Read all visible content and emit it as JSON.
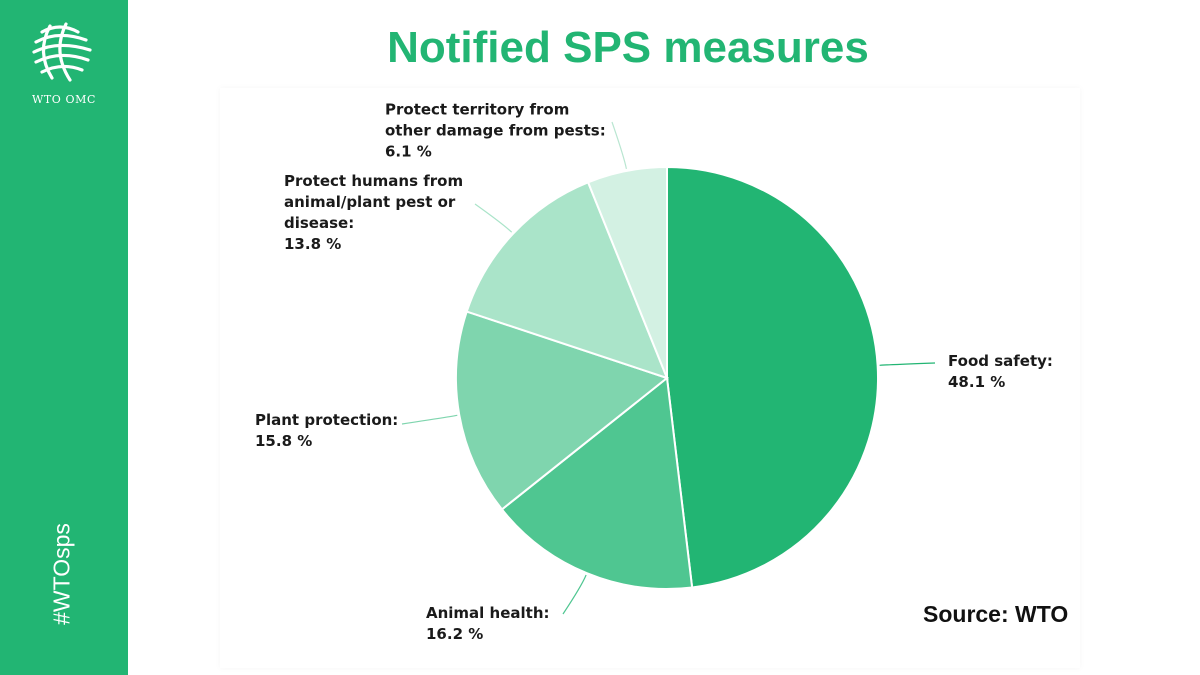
{
  "sidebar": {
    "logo_icon": "wto-globe-logo-icon",
    "org_label": "WTO OMC",
    "hashtag": "#WTOsps",
    "background": "#22b573"
  },
  "header": {
    "title": "Notified SPS measures"
  },
  "footer": {
    "source": "Source: WTO"
  },
  "chart_data": {
    "type": "pie",
    "title": "Notified SPS measures",
    "unit": "%",
    "start_angle_deg": 0,
    "direction": "clockwise",
    "legend": "none",
    "slices": [
      {
        "label_lines": [
          "Food safety:"
        ],
        "value_text": "48.1 %",
        "value": 48.1,
        "color": "#22b573"
      },
      {
        "label_lines": [
          "Animal health:"
        ],
        "value_text": "16.2 %",
        "value": 16.2,
        "color": "#4fc691"
      },
      {
        "label_lines": [
          "Plant protection:"
        ],
        "value_text": "15.8 %",
        "value": 15.8,
        "color": "#7fd5ae"
      },
      {
        "label_lines": [
          "Protect humans from",
          "animal/plant pest or",
          "disease:"
        ],
        "value_text": "13.8 %",
        "value": 13.8,
        "color": "#aae4c9"
      },
      {
        "label_lines": [
          "Protect territory from",
          "other damage from pests:"
        ],
        "value_text": "6.1 %",
        "value": 6.1,
        "color": "#d3f1e3"
      }
    ]
  }
}
